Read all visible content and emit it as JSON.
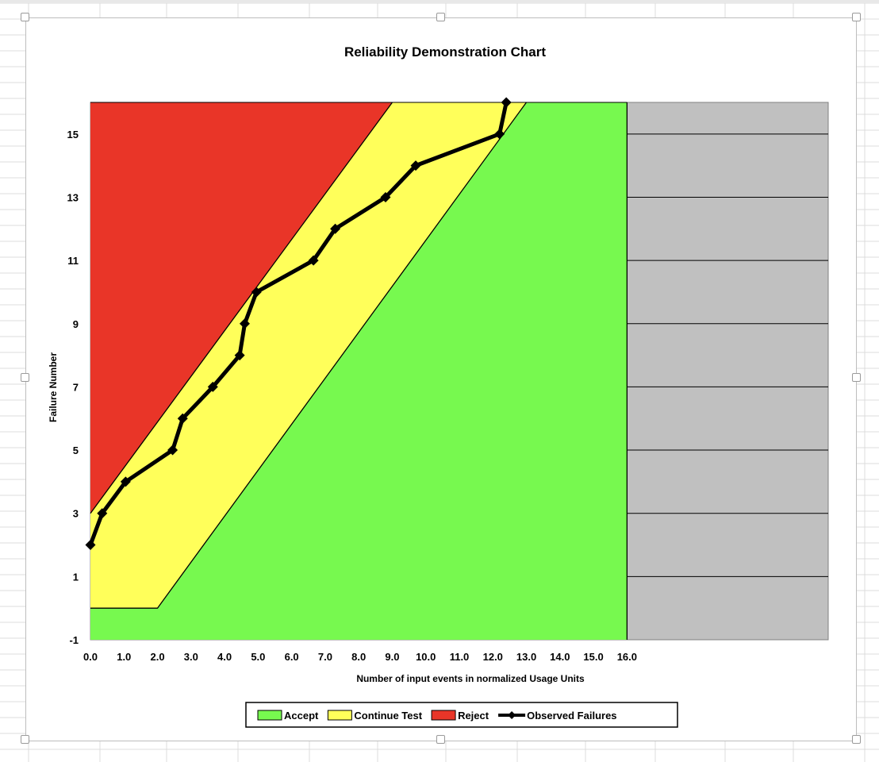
{
  "chart_data": {
    "type": "area",
    "title": "Reliability Demonstration Chart",
    "xlabel": "Number of input events in normalized Usage Units",
    "ylabel": "Failure Number",
    "xlim": [
      0,
      22
    ],
    "ylim": [
      -1,
      16
    ],
    "x_ticks": [
      "0.0",
      "1.0",
      "2.0",
      "3.0",
      "4.0",
      "5.0",
      "6.0",
      "7.0",
      "8.0",
      "9.0",
      "10.0",
      "11.0",
      "12.0",
      "13.0",
      "14.0",
      "15.0",
      "16.0"
    ],
    "y_ticks": [
      "-1",
      "1",
      "3",
      "5",
      "7",
      "9",
      "11",
      "13",
      "15"
    ],
    "grid": "horizontal",
    "legend_position": "bottom",
    "regions": [
      {
        "name": "Accept",
        "color": "#77f94f",
        "boundary": [
          [
            0,
            0
          ],
          [
            2.0,
            0
          ],
          [
            13.0,
            16
          ]
        ]
      },
      {
        "name": "Continue Test",
        "color": "#ffff5a",
        "boundary": [
          [
            0,
            3
          ],
          [
            9.0,
            16
          ]
        ]
      },
      {
        "name": "Reject",
        "color": "#e93528"
      }
    ],
    "plot_area_background": "#c0c0c0",
    "shaded_x_max": 16.0,
    "series": [
      {
        "name": "Observed Failures",
        "color": "#000000",
        "marker": "diamond",
        "x": [
          0.0,
          0.35,
          1.05,
          2.45,
          2.75,
          3.65,
          4.45,
          4.6,
          4.95,
          6.65,
          7.3,
          8.8,
          9.7,
          12.2,
          12.4
        ],
        "y": [
          2,
          3,
          4,
          5,
          6,
          7,
          8,
          9,
          10,
          11,
          12,
          13,
          14,
          15,
          16
        ]
      }
    ]
  }
}
